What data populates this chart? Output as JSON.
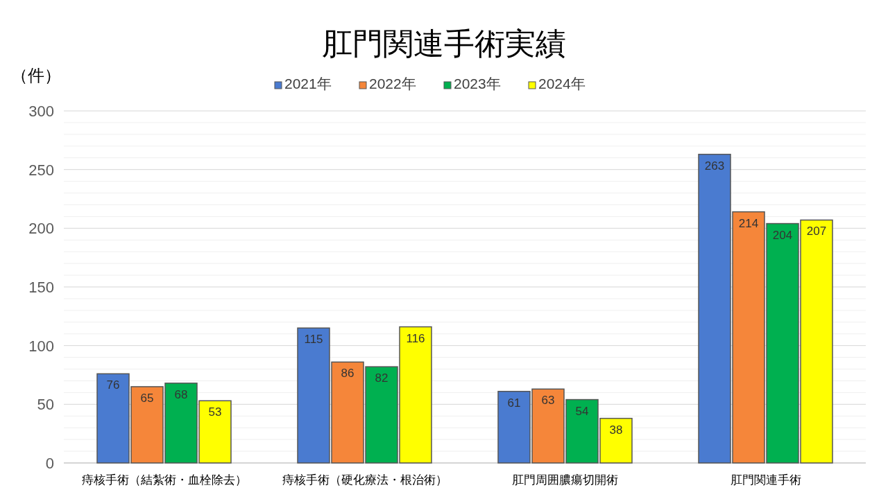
{
  "chart_data": {
    "type": "bar",
    "title": "肛門関連手術実績",
    "ylabel": "（件）",
    "categories": [
      "痔核手術（結紮術・血栓除去）",
      "痔核手術（硬化療法・根治術）",
      "肛門周囲膿瘍切開術",
      "肛門関連手術"
    ],
    "series": [
      {
        "name": "2021年",
        "color": "#4a7bd0",
        "values": [
          76,
          115,
          61,
          263
        ]
      },
      {
        "name": "2022年",
        "color": "#f5863a",
        "values": [
          65,
          86,
          63,
          214
        ]
      },
      {
        "name": "2023年",
        "color": "#00b050",
        "values": [
          68,
          82,
          54,
          204
        ]
      },
      {
        "name": "2024年",
        "color": "#ffff00",
        "values": [
          53,
          116,
          38,
          207
        ]
      }
    ],
    "ylim": [
      0,
      300
    ],
    "yticks": [
      0,
      {
        "value": 10,
        "label": null
      },
      {
        "value": 20,
        "label": null
      },
      {
        "value": 30,
        "label": null
      },
      {
        "value": 40,
        "label": null
      },
      50,
      {
        "value": 60,
        "label": null
      },
      {
        "value": 70,
        "label": null
      },
      {
        "value": 80,
        "label": null
      },
      {
        "value": 90,
        "label": null
      },
      100,
      {
        "value": 110,
        "label": null
      },
      {
        "value": 120,
        "label": null
      },
      {
        "value": 130,
        "label": null
      },
      {
        "value": 140,
        "label": null
      },
      150,
      {
        "value": 160,
        "label": null
      },
      {
        "value": 170,
        "label": null
      },
      {
        "value": 180,
        "label": null
      },
      {
        "value": 190,
        "label": null
      },
      200,
      {
        "value": 210,
        "label": null
      },
      {
        "value": 220,
        "label": null
      },
      {
        "value": 230,
        "label": null
      },
      {
        "value": 240,
        "label": null
      },
      250,
      {
        "value": 260,
        "label": null
      },
      {
        "value": 270,
        "label": null
      },
      {
        "value": 280,
        "label": null
      },
      {
        "value": 290,
        "label": null
      },
      300
    ],
    "grid": "y",
    "legend": "top",
    "data_labels": true
  }
}
